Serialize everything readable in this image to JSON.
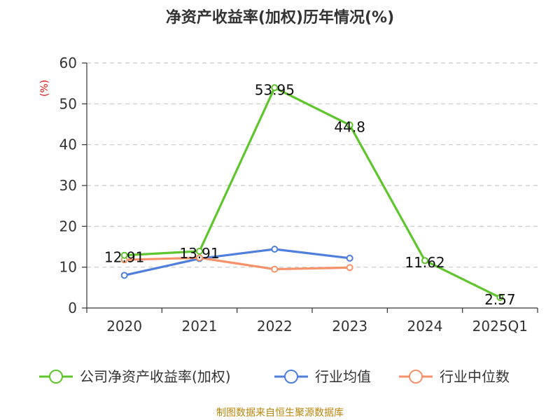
{
  "chart_data": {
    "type": "line",
    "title": "净资产收益率(加权)历年情况(%)",
    "ylabel": "(%)",
    "xlabel": "",
    "categories": [
      "2020",
      "2021",
      "2022",
      "2023",
      "2024",
      "2025Q1"
    ],
    "ylim": [
      0,
      60
    ],
    "yticks": [
      0,
      10,
      20,
      30,
      40,
      50,
      60
    ],
    "grid": true,
    "legend_position": "bottom",
    "series": [
      {
        "name": "公司净资产收益率(加权)",
        "color": "#5ec52c",
        "values": [
          12.91,
          13.91,
          53.95,
          44.8,
          11.62,
          2.57
        ],
        "labels": [
          "12.91",
          "13.91",
          "53.95",
          "44.8",
          "11.62",
          "2.57"
        ]
      },
      {
        "name": "行业均值",
        "color": "#4f7fdb",
        "values": [
          8.0,
          12.1,
          14.4,
          12.2,
          null,
          null
        ]
      },
      {
        "name": "行业中位数",
        "color": "#f5926a",
        "values": [
          11.8,
          12.3,
          9.5,
          9.9,
          null,
          null
        ]
      }
    ]
  },
  "footer": "制图数据来自恒生聚源数据库"
}
